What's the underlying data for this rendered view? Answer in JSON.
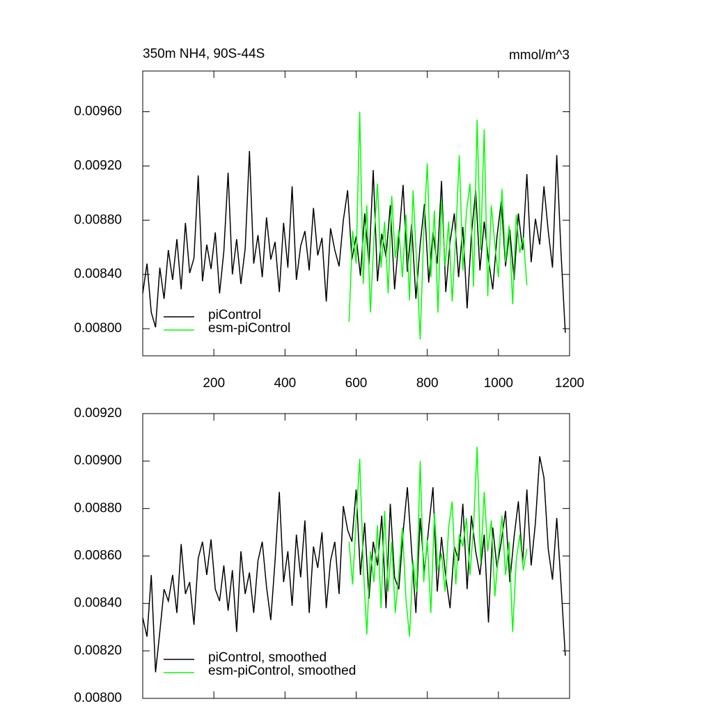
{
  "chart_data": [
    {
      "type": "line",
      "title": "350m NH4, 90S-44S",
      "units_label": "mmol/m^3",
      "xlim": [
        0,
        1200
      ],
      "ylim": [
        0.0078,
        0.0099
      ],
      "xticks": [
        200,
        400,
        600,
        800,
        1000,
        1200
      ],
      "yticks": [
        {
          "value": 0.008,
          "label": "0.00800"
        },
        {
          "value": 0.0084,
          "label": "0.00840"
        },
        {
          "value": 0.0088,
          "label": "0.00880"
        },
        {
          "value": 0.0092,
          "label": "0.00920"
        },
        {
          "value": 0.0096,
          "label": "0.00960"
        }
      ],
      "xtick_labels": true,
      "legend": "lower left",
      "series": [
        {
          "name": "piControl",
          "color": "#000000",
          "x": [
            0,
            12,
            24,
            36,
            48,
            60,
            72,
            84,
            96,
            108,
            120,
            132,
            144,
            156,
            168,
            180,
            192,
            204,
            216,
            228,
            240,
            252,
            264,
            276,
            288,
            300,
            312,
            324,
            336,
            348,
            360,
            372,
            384,
            396,
            408,
            420,
            432,
            444,
            456,
            468,
            480,
            492,
            504,
            516,
            528,
            540,
            552,
            564,
            576,
            588,
            600,
            612,
            624,
            636,
            648,
            660,
            672,
            684,
            696,
            708,
            720,
            732,
            744,
            756,
            768,
            780,
            792,
            804,
            816,
            828,
            840,
            852,
            864,
            876,
            888,
            900,
            912,
            924,
            936,
            948,
            960,
            972,
            984,
            996,
            1008,
            1020,
            1032,
            1044,
            1056,
            1068,
            1080,
            1092,
            1104,
            1116,
            1128,
            1140,
            1152,
            1164,
            1176,
            1188
          ],
          "values": [
            0.00826,
            0.00848,
            0.00812,
            0.00801,
            0.00845,
            0.00822,
            0.00858,
            0.00836,
            0.00866,
            0.00829,
            0.00878,
            0.00841,
            0.00852,
            0.00913,
            0.00835,
            0.00862,
            0.00844,
            0.00871,
            0.00826,
            0.00857,
            0.00915,
            0.0084,
            0.00866,
            0.00833,
            0.00859,
            0.00931,
            0.00848,
            0.00869,
            0.00838,
            0.00882,
            0.00851,
            0.00864,
            0.00827,
            0.00878,
            0.00845,
            0.00905,
            0.00836,
            0.00861,
            0.00872,
            0.00843,
            0.00889,
            0.00854,
            0.00867,
            0.0082,
            0.00874,
            0.00858,
            0.00846,
            0.0088,
            0.00902,
            0.00851,
            0.00868,
            0.00839,
            0.00885,
            0.00847,
            0.00917,
            0.00835,
            0.0087,
            0.00853,
            0.00891,
            0.00829,
            0.00866,
            0.00906,
            0.00842,
            0.00877,
            0.00822,
            0.00862,
            0.00892,
            0.00834,
            0.00871,
            0.00848,
            0.00909,
            0.00827,
            0.00864,
            0.00885,
            0.00838,
            0.00875,
            0.00815,
            0.00869,
            0.00902,
            0.00843,
            0.00879,
            0.00851,
            0.00829,
            0.00868,
            0.00894,
            0.00846,
            0.00873,
            0.00836,
            0.00885,
            0.00858,
            0.00914,
            0.00849,
            0.00881,
            0.00862,
            0.00905,
            0.00872,
            0.00845,
            0.00928,
            0.00856,
            0.00797
          ]
        },
        {
          "name": "esm-piControl",
          "color": "#00ff00",
          "x": [
            580,
            590,
            600,
            610,
            620,
            630,
            640,
            650,
            660,
            670,
            680,
            690,
            700,
            710,
            720,
            730,
            740,
            750,
            760,
            770,
            780,
            790,
            800,
            810,
            820,
            830,
            840,
            850,
            860,
            870,
            880,
            890,
            900,
            910,
            920,
            930,
            940,
            950,
            960,
            970,
            980,
            990,
            1000,
            1010,
            1020,
            1030,
            1040,
            1050,
            1060,
            1070,
            1080
          ],
          "values": [
            0.00805,
            0.00872,
            0.00848,
            0.0096,
            0.00833,
            0.00891,
            0.00812,
            0.00866,
            0.00907,
            0.00845,
            0.00879,
            0.00826,
            0.00898,
            0.00852,
            0.00873,
            0.00838,
            0.00884,
            0.00821,
            0.00902,
            0.00849,
            0.00792,
            0.00871,
            0.00922,
            0.00838,
            0.00887,
            0.00812,
            0.00895,
            0.00846,
            0.00879,
            0.0082,
            0.00868,
            0.00928,
            0.00843,
            0.00886,
            0.00907,
            0.00831,
            0.00954,
            0.00858,
            0.00947,
            0.00824,
            0.00891,
            0.00862,
            0.00838,
            0.00903,
            0.00849,
            0.00876,
            0.00818,
            0.00884,
            0.00856,
            0.00867,
            0.00832
          ]
        }
      ]
    },
    {
      "type": "line",
      "xlim": [
        0,
        1200
      ],
      "ylim": [
        0.008,
        0.0092
      ],
      "xticks": [
        200,
        400,
        600,
        800,
        1000,
        1200
      ],
      "yticks": [
        {
          "value": 0.008,
          "label": "0.00800"
        },
        {
          "value": 0.0082,
          "label": "0.00820"
        },
        {
          "value": 0.0084,
          "label": "0.00840"
        },
        {
          "value": 0.0086,
          "label": "0.00860"
        },
        {
          "value": 0.0088,
          "label": "0.00880"
        },
        {
          "value": 0.009,
          "label": "0.00900"
        },
        {
          "value": 0.0092,
          "label": "0.00920"
        }
      ],
      "xtick_labels": false,
      "legend": "lower left",
      "series": [
        {
          "name": "piControl, smoothed",
          "color": "#000000",
          "x": [
            0,
            12,
            24,
            36,
            48,
            60,
            72,
            84,
            96,
            108,
            120,
            132,
            144,
            156,
            168,
            180,
            192,
            204,
            216,
            228,
            240,
            252,
            264,
            276,
            288,
            300,
            312,
            324,
            336,
            348,
            360,
            372,
            384,
            396,
            408,
            420,
            432,
            444,
            456,
            468,
            480,
            492,
            504,
            516,
            528,
            540,
            552,
            564,
            576,
            588,
            600,
            612,
            624,
            636,
            648,
            660,
            672,
            684,
            696,
            708,
            720,
            732,
            744,
            756,
            768,
            780,
            792,
            804,
            816,
            828,
            840,
            852,
            864,
            876,
            888,
            900,
            912,
            924,
            936,
            948,
            960,
            972,
            984,
            996,
            1008,
            1020,
            1032,
            1044,
            1056,
            1068,
            1080,
            1092,
            1104,
            1116,
            1128,
            1140,
            1152,
            1164,
            1176,
            1188
          ],
          "values": [
            0.00834,
            0.00826,
            0.00852,
            0.00811,
            0.00828,
            0.00846,
            0.00841,
            0.00852,
            0.00836,
            0.00865,
            0.00844,
            0.00849,
            0.00831,
            0.00859,
            0.00866,
            0.00852,
            0.00867,
            0.00846,
            0.00841,
            0.00856,
            0.00837,
            0.00854,
            0.00828,
            0.00862,
            0.00844,
            0.00853,
            0.00836,
            0.00858,
            0.00866,
            0.00847,
            0.00833,
            0.00858,
            0.00887,
            0.00849,
            0.00862,
            0.00839,
            0.00869,
            0.00851,
            0.00875,
            0.00836,
            0.00864,
            0.00855,
            0.0087,
            0.00838,
            0.00858,
            0.00866,
            0.00844,
            0.00881,
            0.00871,
            0.00866,
            0.00888,
            0.00852,
            0.00874,
            0.00842,
            0.00866,
            0.00856,
            0.00877,
            0.00838,
            0.00882,
            0.00851,
            0.00846,
            0.0087,
            0.00889,
            0.00862,
            0.00836,
            0.00876,
            0.00853,
            0.00872,
            0.00889,
            0.00845,
            0.00868,
            0.00851,
            0.00838,
            0.00864,
            0.00858,
            0.00882,
            0.00846,
            0.00877,
            0.00862,
            0.00852,
            0.00869,
            0.00832,
            0.00872,
            0.00855,
            0.00866,
            0.00879,
            0.00849,
            0.00868,
            0.00883,
            0.00857,
            0.00888,
            0.00856,
            0.00874,
            0.00902,
            0.00893,
            0.00863,
            0.0085,
            0.00876,
            0.00848,
            0.00818
          ]
        },
        {
          "name": "esm-piControl, smoothed",
          "color": "#00ff00",
          "x": [
            580,
            590,
            600,
            610,
            620,
            630,
            640,
            650,
            660,
            670,
            680,
            690,
            700,
            710,
            720,
            730,
            740,
            750,
            760,
            770,
            780,
            790,
            800,
            810,
            820,
            830,
            840,
            850,
            860,
            870,
            880,
            890,
            900,
            910,
            920,
            930,
            940,
            950,
            960,
            970,
            980,
            990,
            1000,
            1010,
            1020,
            1030,
            1040,
            1050,
            1060,
            1070,
            1080
          ],
          "values": [
            0.00866,
            0.00848,
            0.00875,
            0.00901,
            0.00856,
            0.00827,
            0.00862,
            0.00849,
            0.00873,
            0.00838,
            0.00879,
            0.00845,
            0.00866,
            0.00836,
            0.00853,
            0.00872,
            0.00842,
            0.00826,
            0.00858,
            0.00845,
            0.009,
            0.00849,
            0.00867,
            0.00836,
            0.00878,
            0.00854,
            0.00861,
            0.00845,
            0.00872,
            0.00883,
            0.00848,
            0.00869,
            0.00864,
            0.00876,
            0.00852,
            0.00872,
            0.00906,
            0.00857,
            0.00887,
            0.00862,
            0.00875,
            0.00843,
            0.00861,
            0.00877,
            0.00852,
            0.00866,
            0.00828,
            0.00858,
            0.00869,
            0.00854,
            0.00863
          ]
        }
      ]
    }
  ]
}
